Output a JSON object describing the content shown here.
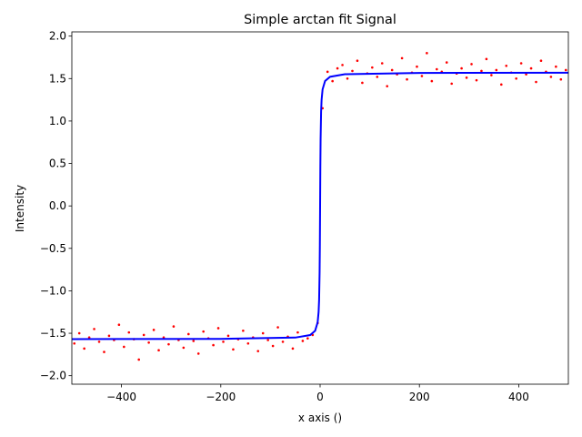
{
  "chart_data": {
    "type": "scatter",
    "title": "Simple arctan fit Signal",
    "x_label": "x axis ()",
    "y_label": "Intensity",
    "xlim": [
      -500,
      500
    ],
    "ylim": [
      -2.1,
      2.05
    ],
    "xticks": [
      {
        "value": -400,
        "label": "−400"
      },
      {
        "value": -200,
        "label": "−200"
      },
      0,
      200,
      400
    ],
    "yticks": [
      {
        "value": -2.0,
        "label": "−2.0"
      },
      {
        "value": -1.5,
        "label": "−1.5"
      },
      {
        "value": -1.0,
        "label": "−1.0"
      },
      {
        "value": -0.5,
        "label": "−0.5"
      },
      {
        "value": 0.0,
        "label": "0.0"
      },
      0.5,
      {
        "value": 1.0,
        "label": "1.0"
      },
      1.5,
      {
        "value": 2.0,
        "label": "2.0"
      }
    ],
    "grid": false,
    "series": [
      {
        "type": "scatter",
        "color": "#ff0000",
        "x": [
          -495,
          -485,
          -475,
          -465,
          -455,
          -445,
          -435,
          -425,
          -415,
          -405,
          -395,
          -385,
          -375,
          -365,
          -355,
          -345,
          -335,
          -325,
          -315,
          -305,
          -295,
          -285,
          -275,
          -265,
          -255,
          -245,
          -235,
          -225,
          -215,
          -205,
          -195,
          -185,
          -175,
          -165,
          -155,
          -145,
          -135,
          -125,
          -115,
          -105,
          -95,
          -85,
          -75,
          -65,
          -55,
          -45,
          -35,
          -25,
          -15,
          -5,
          5,
          15,
          25,
          35,
          45,
          55,
          65,
          75,
          85,
          95,
          105,
          115,
          125,
          135,
          145,
          155,
          165,
          175,
          185,
          195,
          205,
          215,
          225,
          235,
          245,
          255,
          265,
          275,
          285,
          295,
          305,
          315,
          325,
          335,
          345,
          355,
          365,
          375,
          385,
          395,
          405,
          415,
          425,
          435,
          445,
          455,
          465,
          475,
          485,
          495
        ],
        "values": [
          -1.62,
          -1.5,
          -1.68,
          -1.55,
          -1.45,
          -1.6,
          -1.72,
          -1.53,
          -1.58,
          -1.4,
          -1.66,
          -1.49,
          -1.57,
          -1.81,
          -1.52,
          -1.61,
          -1.46,
          -1.7,
          -1.55,
          -1.63,
          -1.42,
          -1.58,
          -1.67,
          -1.51,
          -1.59,
          -1.74,
          -1.48,
          -1.56,
          -1.64,
          -1.44,
          -1.6,
          -1.53,
          -1.69,
          -1.57,
          -1.47,
          -1.62,
          -1.55,
          -1.71,
          -1.5,
          -1.58,
          -1.65,
          -1.43,
          -1.6,
          -1.54,
          -1.68,
          -1.49,
          -1.59,
          -1.56,
          -1.52,
          -1.38,
          1.15,
          1.58,
          1.47,
          1.62,
          1.66,
          1.5,
          1.59,
          1.71,
          1.45,
          1.56,
          1.63,
          1.52,
          1.68,
          1.41,
          1.6,
          1.55,
          1.74,
          1.49,
          1.57,
          1.64,
          1.53,
          1.8,
          1.47,
          1.61,
          1.58,
          1.69,
          1.44,
          1.56,
          1.62,
          1.51,
          1.67,
          1.48,
          1.59,
          1.73,
          1.54,
          1.6,
          1.43,
          1.65,
          1.57,
          1.5,
          1.68,
          1.55,
          1.62,
          1.46,
          1.71,
          1.58,
          1.52,
          1.64,
          1.49,
          1.6
        ]
      },
      {
        "type": "line",
        "color": "#0000ff",
        "x": [
          -500,
          -200,
          -50,
          -20,
          -10,
          -5,
          -3,
          -2,
          -1,
          -0.5,
          0,
          0.5,
          1,
          2,
          3,
          5,
          10,
          20,
          50,
          200,
          500
        ],
        "values": [
          -1.569,
          -1.566,
          -1.551,
          -1.521,
          -1.471,
          -1.373,
          -1.249,
          -1.107,
          -0.785,
          -0.464,
          0,
          0.464,
          0.785,
          1.107,
          1.249,
          1.373,
          1.471,
          1.521,
          1.551,
          1.566,
          1.569
        ]
      }
    ]
  }
}
